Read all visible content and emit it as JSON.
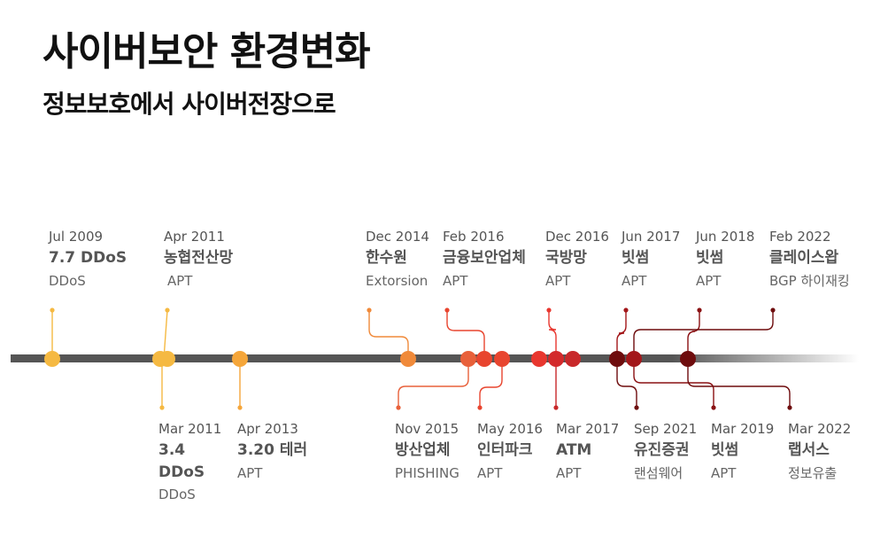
{
  "title": "사이버보안 환경변화",
  "subtitle": "정보보호에서 사이버전장으로",
  "events_top": [
    {
      "date": "Jul 2009",
      "name": "7.7 DDoS",
      "category": "DDoS",
      "color": "#f5b942"
    },
    {
      "date": "Apr 2011",
      "name": "농협전산망",
      "category": "APT",
      "color": "#f5b942"
    },
    {
      "date": "Dec 2014",
      "name": "한수원",
      "category": "Extorsion",
      "color": "#f08a3a"
    },
    {
      "date": "Feb 2016",
      "name": "금융보안업체",
      "category": "APT",
      "color": "#e8452f"
    },
    {
      "date": "Dec 2016",
      "name": "국방망",
      "category": "APT",
      "color": "#e8372f"
    },
    {
      "date": "Jun 2017",
      "name": "빗썸",
      "category": "APT",
      "color": "#a3171a"
    },
    {
      "date": "Jun 2018",
      "name": "빗썸",
      "category": "APT",
      "color": "#8a1012"
    },
    {
      "date": "Feb 2022",
      "name": "클레이스왑",
      "category": "BGP 하이재킹",
      "color": "#6e0c0d"
    }
  ],
  "events_bottom": [
    {
      "date": "Mar 2011",
      "name": "3.4 DDoS",
      "category": "DDoS",
      "color": "#f5b942"
    },
    {
      "date": "Apr 2013",
      "name": "3.20 테러",
      "category": "APT",
      "color": "#f5a63a"
    },
    {
      "date": "Nov 2015",
      "name": "방산업체",
      "category": "PHISHING",
      "color": "#e8603a"
    },
    {
      "date": "May 2016",
      "name": "인터파크",
      "category": "APT",
      "color": "#e8452f"
    },
    {
      "date": "Mar 2017",
      "name": "ATM",
      "category": "APT",
      "color": "#c8282a"
    },
    {
      "date": "Sep 2021",
      "name": "유진증권",
      "category": "랜섬웨어",
      "color": "#6e0c0d"
    },
    {
      "date": "Mar 2019",
      "name": "빗썸",
      "category": "APT",
      "color": "#8a1012"
    },
    {
      "date": "Mar 2022",
      "name": "랩서스",
      "category": "정보유출",
      "color": "#6e0c0d"
    }
  ]
}
